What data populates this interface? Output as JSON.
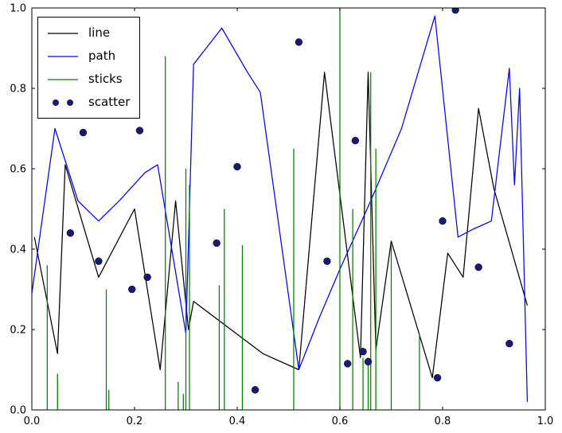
{
  "chart_data": {
    "type": "mixed",
    "title": "",
    "xlabel": "",
    "ylabel": "",
    "xlim": [
      0.0,
      1.0
    ],
    "ylim": [
      0.0,
      1.0
    ],
    "x_ticks": [
      "0.0",
      "0.2",
      "0.4",
      "0.6",
      "0.8",
      "1.0"
    ],
    "y_ticks": [
      "0.0",
      "0.2",
      "0.4",
      "0.6",
      "0.8",
      "1.0"
    ],
    "grid": false,
    "legend_position": "upper-left",
    "series": [
      {
        "name": "line",
        "type": "line",
        "color": "#000000",
        "points": [
          [
            0.005,
            0.43
          ],
          [
            0.05,
            0.14
          ],
          [
            0.065,
            0.61
          ],
          [
            0.13,
            0.33
          ],
          [
            0.2,
            0.5
          ],
          [
            0.25,
            0.1
          ],
          [
            0.28,
            0.52
          ],
          [
            0.305,
            0.2
          ],
          [
            0.315,
            0.27
          ],
          [
            0.45,
            0.14
          ],
          [
            0.52,
            0.1
          ],
          [
            0.57,
            0.84
          ],
          [
            0.64,
            0.13
          ],
          [
            0.655,
            0.84
          ],
          [
            0.67,
            0.15
          ],
          [
            0.7,
            0.42
          ],
          [
            0.78,
            0.08
          ],
          [
            0.81,
            0.39
          ],
          [
            0.84,
            0.33
          ],
          [
            0.87,
            0.75
          ],
          [
            0.9,
            0.55
          ],
          [
            0.965,
            0.26
          ]
        ]
      },
      {
        "name": "path",
        "type": "line",
        "color": "#0000ff",
        "points": [
          [
            0.0,
            0.29
          ],
          [
            0.045,
            0.7
          ],
          [
            0.09,
            0.52
          ],
          [
            0.13,
            0.47
          ],
          [
            0.17,
            0.52
          ],
          [
            0.22,
            0.59
          ],
          [
            0.245,
            0.61
          ],
          [
            0.3,
            0.19
          ],
          [
            0.315,
            0.86
          ],
          [
            0.37,
            0.95
          ],
          [
            0.42,
            0.84
          ],
          [
            0.445,
            0.79
          ],
          [
            0.52,
            0.1
          ],
          [
            0.56,
            0.23
          ],
          [
            0.6,
            0.35
          ],
          [
            0.66,
            0.52
          ],
          [
            0.72,
            0.7
          ],
          [
            0.785,
            0.98
          ],
          [
            0.83,
            0.43
          ],
          [
            0.86,
            0.45
          ],
          [
            0.895,
            0.47
          ],
          [
            0.93,
            0.85
          ],
          [
            0.94,
            0.56
          ],
          [
            0.95,
            0.8
          ],
          [
            0.965,
            0.02
          ]
        ]
      },
      {
        "name": "sticks",
        "type": "sticks",
        "color": "#008000",
        "points": [
          [
            0.03,
            0.36
          ],
          [
            0.05,
            0.09
          ],
          [
            0.145,
            0.3
          ],
          [
            0.15,
            0.05
          ],
          [
            0.26,
            0.88
          ],
          [
            0.285,
            0.07
          ],
          [
            0.295,
            0.04
          ],
          [
            0.3,
            0.6
          ],
          [
            0.307,
            0.56
          ],
          [
            0.365,
            0.31
          ],
          [
            0.375,
            0.5
          ],
          [
            0.41,
            0.41
          ],
          [
            0.51,
            0.65
          ],
          [
            0.6,
            1.0
          ],
          [
            0.625,
            0.5
          ],
          [
            0.645,
            0.13
          ],
          [
            0.655,
            0.13
          ],
          [
            0.66,
            0.84
          ],
          [
            0.67,
            0.65
          ],
          [
            0.7,
            0.41
          ],
          [
            0.755,
            0.19
          ]
        ]
      },
      {
        "name": "scatter",
        "type": "scatter",
        "color": "#191970",
        "points": [
          [
            0.075,
            0.44
          ],
          [
            0.1,
            0.69
          ],
          [
            0.13,
            0.37
          ],
          [
            0.195,
            0.3
          ],
          [
            0.21,
            0.695
          ],
          [
            0.225,
            0.33
          ],
          [
            0.36,
            0.415
          ],
          [
            0.4,
            0.605
          ],
          [
            0.435,
            0.05
          ],
          [
            0.52,
            0.915
          ],
          [
            0.575,
            0.37
          ],
          [
            0.615,
            0.115
          ],
          [
            0.63,
            0.67
          ],
          [
            0.645,
            0.145
          ],
          [
            0.655,
            0.12
          ],
          [
            0.79,
            0.08
          ],
          [
            0.8,
            0.47
          ],
          [
            0.825,
            0.995
          ],
          [
            0.87,
            0.355
          ],
          [
            0.93,
            0.165
          ]
        ]
      }
    ]
  }
}
